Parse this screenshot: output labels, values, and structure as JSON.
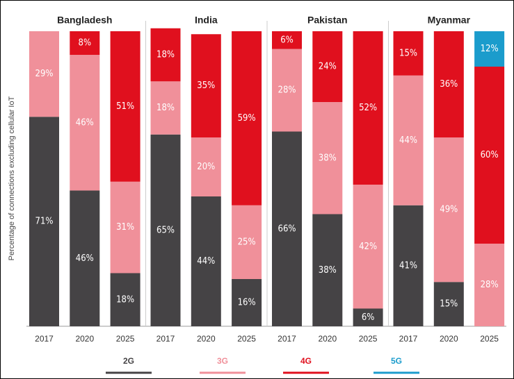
{
  "chart_data": [
    {
      "type": "bar",
      "stacked": true,
      "title": "Bangladesh",
      "ylabel": "Percentage of connections excluding cellular IoT",
      "ylim": [
        0,
        100
      ],
      "categories": [
        "2017",
        "2020",
        "2025"
      ],
      "series": [
        {
          "name": "2G",
          "color": "#454345",
          "values": [
            71,
            46,
            18
          ],
          "value_labels": [
            "71%",
            "46%",
            "18%"
          ]
        },
        {
          "name": "3G",
          "color": "#f0909a",
          "values": [
            29,
            46,
            31
          ],
          "value_labels": [
            "29%",
            "46%",
            "31%"
          ]
        },
        {
          "name": "4G",
          "color": "#e0101e",
          "values": [
            null,
            8,
            51
          ],
          "value_labels": [
            null,
            "8%",
            "51%"
          ]
        },
        {
          "name": "5G",
          "color": "#1b9ccc",
          "values": [
            null,
            null,
            null
          ],
          "value_labels": [
            null,
            null,
            null
          ]
        }
      ]
    },
    {
      "type": "bar",
      "stacked": true,
      "title": "India",
      "ylim": [
        0,
        100
      ],
      "categories": [
        "2017",
        "2020",
        "2025"
      ],
      "series": [
        {
          "name": "2G",
          "color": "#454345",
          "values": [
            65,
            44,
            16
          ],
          "value_labels": [
            "65%",
            "44%",
            "16%"
          ]
        },
        {
          "name": "3G",
          "color": "#f0909a",
          "values": [
            18,
            20,
            25
          ],
          "value_labels": [
            "18%",
            "20%",
            "25%"
          ]
        },
        {
          "name": "4G",
          "color": "#e0101e",
          "values": [
            18,
            35,
            59
          ],
          "value_labels": [
            "18%",
            "35%",
            "59%"
          ]
        },
        {
          "name": "5G",
          "color": "#1b9ccc",
          "values": [
            null,
            null,
            null
          ],
          "value_labels": [
            null,
            null,
            null
          ]
        }
      ]
    },
    {
      "type": "bar",
      "stacked": true,
      "title": "Pakistan",
      "ylim": [
        0,
        100
      ],
      "categories": [
        "2017",
        "2020",
        "2025"
      ],
      "series": [
        {
          "name": "2G",
          "color": "#454345",
          "values": [
            66,
            38,
            6
          ],
          "value_labels": [
            "66%",
            "38%",
            "6%"
          ]
        },
        {
          "name": "3G",
          "color": "#f0909a",
          "values": [
            28,
            38,
            42
          ],
          "value_labels": [
            "28%",
            "38%",
            "42%"
          ]
        },
        {
          "name": "4G",
          "color": "#e0101e",
          "values": [
            6,
            24,
            52
          ],
          "value_labels": [
            "6%",
            "24%",
            "52%"
          ]
        },
        {
          "name": "5G",
          "color": "#1b9ccc",
          "values": [
            null,
            null,
            null
          ],
          "value_labels": [
            null,
            null,
            null
          ]
        }
      ]
    },
    {
      "type": "bar",
      "stacked": true,
      "title": "Myanmar",
      "ylim": [
        0,
        100
      ],
      "categories": [
        "2017",
        "2020",
        "2025"
      ],
      "series": [
        {
          "name": "2G",
          "color": "#454345",
          "values": [
            41,
            15,
            null
          ],
          "value_labels": [
            "41%",
            "15%",
            null
          ]
        },
        {
          "name": "3G",
          "color": "#f0909a",
          "values": [
            44,
            49,
            28
          ],
          "value_labels": [
            "44%",
            "49%",
            "28%"
          ]
        },
        {
          "name": "4G",
          "color": "#e0101e",
          "values": [
            15,
            36,
            60
          ],
          "value_labels": [
            "15%",
            "36%",
            "60%"
          ]
        },
        {
          "name": "5G",
          "color": "#1b9ccc",
          "values": [
            null,
            null,
            12
          ],
          "value_labels": [
            null,
            null,
            "12%"
          ]
        }
      ]
    }
  ]
}
